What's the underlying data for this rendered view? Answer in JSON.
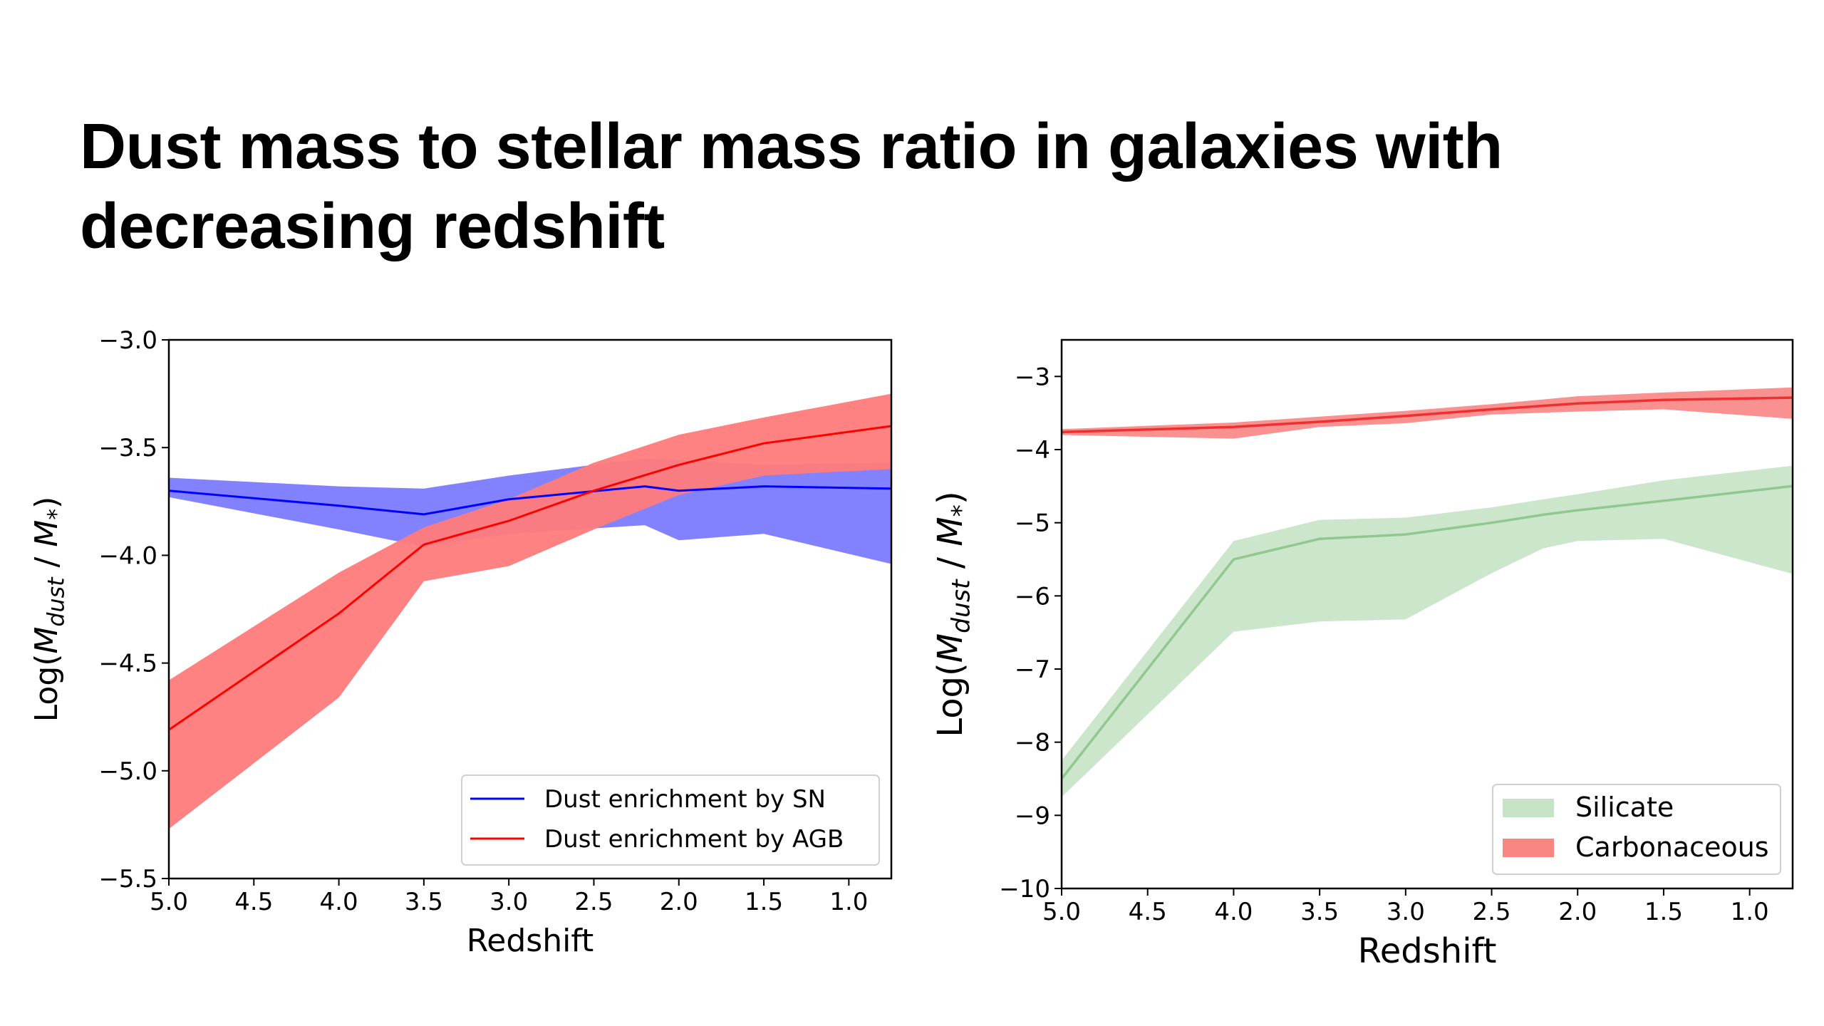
{
  "slide": {
    "title": "Dust mass to stellar mass ratio in galaxies with decreasing redshift"
  },
  "chart_data": [
    {
      "type": "line",
      "xlabel": "Redshift",
      "ylabel": "Log(M_dust / M_*)",
      "xlim": [
        5.0,
        0.75
      ],
      "ylim": [
        -5.5,
        -3.0
      ],
      "x_inverted": true,
      "xticks": [
        "5.0",
        "4.5",
        "4.0",
        "3.5",
        "3.0",
        "2.5",
        "2.0",
        "1.5",
        "1.0"
      ],
      "xtick_values": [
        5.0,
        4.5,
        4.0,
        3.5,
        3.0,
        2.5,
        2.0,
        1.5,
        1.0
      ],
      "yticks": [
        "−3.0",
        "−3.5",
        "−4.0",
        "−4.5",
        "−5.0",
        "−5.5"
      ],
      "ytick_values": [
        -3.0,
        -3.5,
        -4.0,
        -4.5,
        -5.0,
        -5.5
      ],
      "grid": false,
      "legend_position": "bottom-right",
      "series": [
        {
          "name": "Dust enrichment by SN",
          "color": "#0000ff",
          "band_color": "#7b7bff",
          "x": [
            5.0,
            4.0,
            3.5,
            3.0,
            2.2,
            2.0,
            1.5,
            0.75
          ],
          "y": [
            -3.7,
            -3.77,
            -3.81,
            -3.74,
            -3.68,
            -3.7,
            -3.68,
            -3.69
          ],
          "lower": [
            -3.73,
            -3.88,
            -3.96,
            -3.9,
            -3.86,
            -3.93,
            -3.9,
            -4.04
          ],
          "upper": [
            -3.64,
            -3.68,
            -3.69,
            -3.63,
            -3.55,
            -3.56,
            -3.58,
            -3.57
          ]
        },
        {
          "name": "Dust enrichment by AGB",
          "color": "#ff0000",
          "band_color": "#ff7b7b",
          "x": [
            5.0,
            4.0,
            3.5,
            3.0,
            2.5,
            2.0,
            1.5,
            0.75
          ],
          "y": [
            -4.81,
            -4.27,
            -3.95,
            -3.84,
            -3.7,
            -3.58,
            -3.48,
            -3.4
          ],
          "lower": [
            -5.27,
            -4.66,
            -4.12,
            -4.05,
            -3.88,
            -3.72,
            -3.63,
            -3.6
          ],
          "upper": [
            -4.58,
            -4.08,
            -3.87,
            -3.74,
            -3.57,
            -3.44,
            -3.36,
            -3.25
          ]
        }
      ]
    },
    {
      "type": "area",
      "xlabel": "Redshift",
      "ylabel": "Log(M_dust / M_*)",
      "xlim": [
        5.0,
        0.75
      ],
      "ylim": [
        -10,
        -2.5
      ],
      "x_inverted": true,
      "xticks": [
        "5.0",
        "4.5",
        "4.0",
        "3.5",
        "3.0",
        "2.5",
        "2.0",
        "1.5",
        "1.0"
      ],
      "xtick_values": [
        5.0,
        4.5,
        4.0,
        3.5,
        3.0,
        2.5,
        2.0,
        1.5,
        1.0
      ],
      "yticks": [
        "−3",
        "−4",
        "−5",
        "−6",
        "−7",
        "−8",
        "−9",
        "−10"
      ],
      "ytick_values": [
        -3,
        -4,
        -5,
        -6,
        -7,
        -8,
        -9,
        -10
      ],
      "grid": false,
      "legend_position": "bottom-right",
      "series": [
        {
          "name": "Silicate",
          "color": "#90c890",
          "band_color": "#c6e3c6",
          "x": [
            5.0,
            4.0,
            3.5,
            3.0,
            2.5,
            2.2,
            2.0,
            1.5,
            0.75
          ],
          "y": [
            -8.5,
            -5.5,
            -5.22,
            -5.16,
            -5.0,
            -4.89,
            -4.83,
            -4.7,
            -4.5
          ],
          "lower": [
            -8.75,
            -6.49,
            -6.35,
            -6.32,
            -5.69,
            -5.35,
            -5.25,
            -5.22,
            -5.7
          ],
          "upper": [
            -8.25,
            -5.25,
            -4.96,
            -4.93,
            -4.79,
            -4.68,
            -4.61,
            -4.42,
            -4.22
          ]
        },
        {
          "name": "Carbonaceous",
          "color": "#ee3030",
          "band_color": "#f98585",
          "x": [
            5.0,
            4.0,
            3.5,
            3.0,
            2.5,
            2.0,
            1.5,
            0.75
          ],
          "y": [
            -3.76,
            -3.69,
            -3.62,
            -3.54,
            -3.45,
            -3.37,
            -3.32,
            -3.29
          ],
          "lower": [
            -3.8,
            -3.85,
            -3.69,
            -3.64,
            -3.52,
            -3.48,
            -3.45,
            -3.58
          ],
          "upper": [
            -3.72,
            -3.63,
            -3.55,
            -3.47,
            -3.38,
            -3.27,
            -3.22,
            -3.15
          ]
        }
      ]
    }
  ]
}
